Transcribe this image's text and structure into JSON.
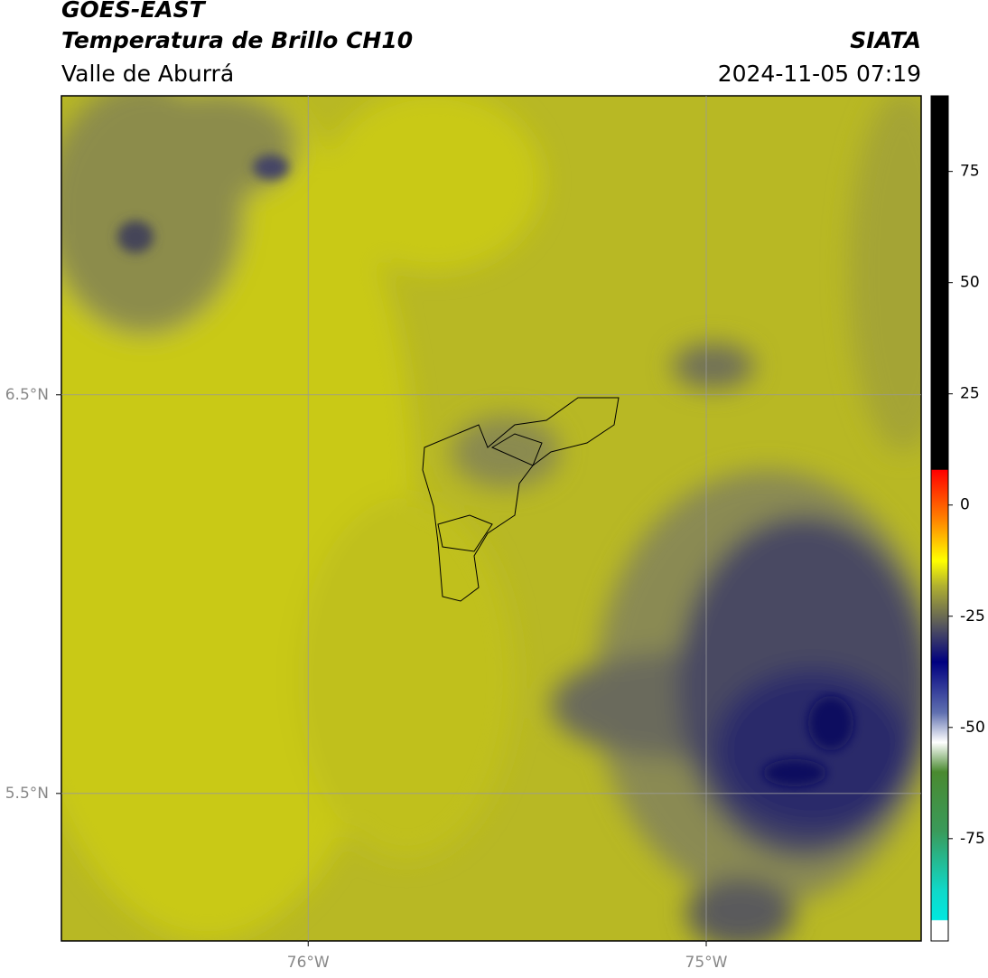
{
  "header": {
    "title": "GOES-EAST",
    "subtitle": "Temperatura de Brillo CH10",
    "region": "Valle de Aburrá",
    "source": "SIATA",
    "datetime": "2024-11-05 07:19"
  },
  "map": {
    "lonlim": [
      -76.62,
      -74.46
    ],
    "latlim": [
      5.13,
      7.25
    ],
    "lon_ticks": [
      {
        "value": -76,
        "label": "76°W"
      },
      {
        "value": -75,
        "label": "75°W"
      }
    ],
    "lat_ticks": [
      {
        "value": 6.5,
        "label": "6.5°N"
      },
      {
        "value": 5.5,
        "label": "5.5°N"
      }
    ]
  },
  "colorbar": {
    "lim": [
      -98,
      92
    ],
    "ticks": [
      75,
      50,
      25,
      0,
      -25,
      -50,
      -75
    ]
  }
}
